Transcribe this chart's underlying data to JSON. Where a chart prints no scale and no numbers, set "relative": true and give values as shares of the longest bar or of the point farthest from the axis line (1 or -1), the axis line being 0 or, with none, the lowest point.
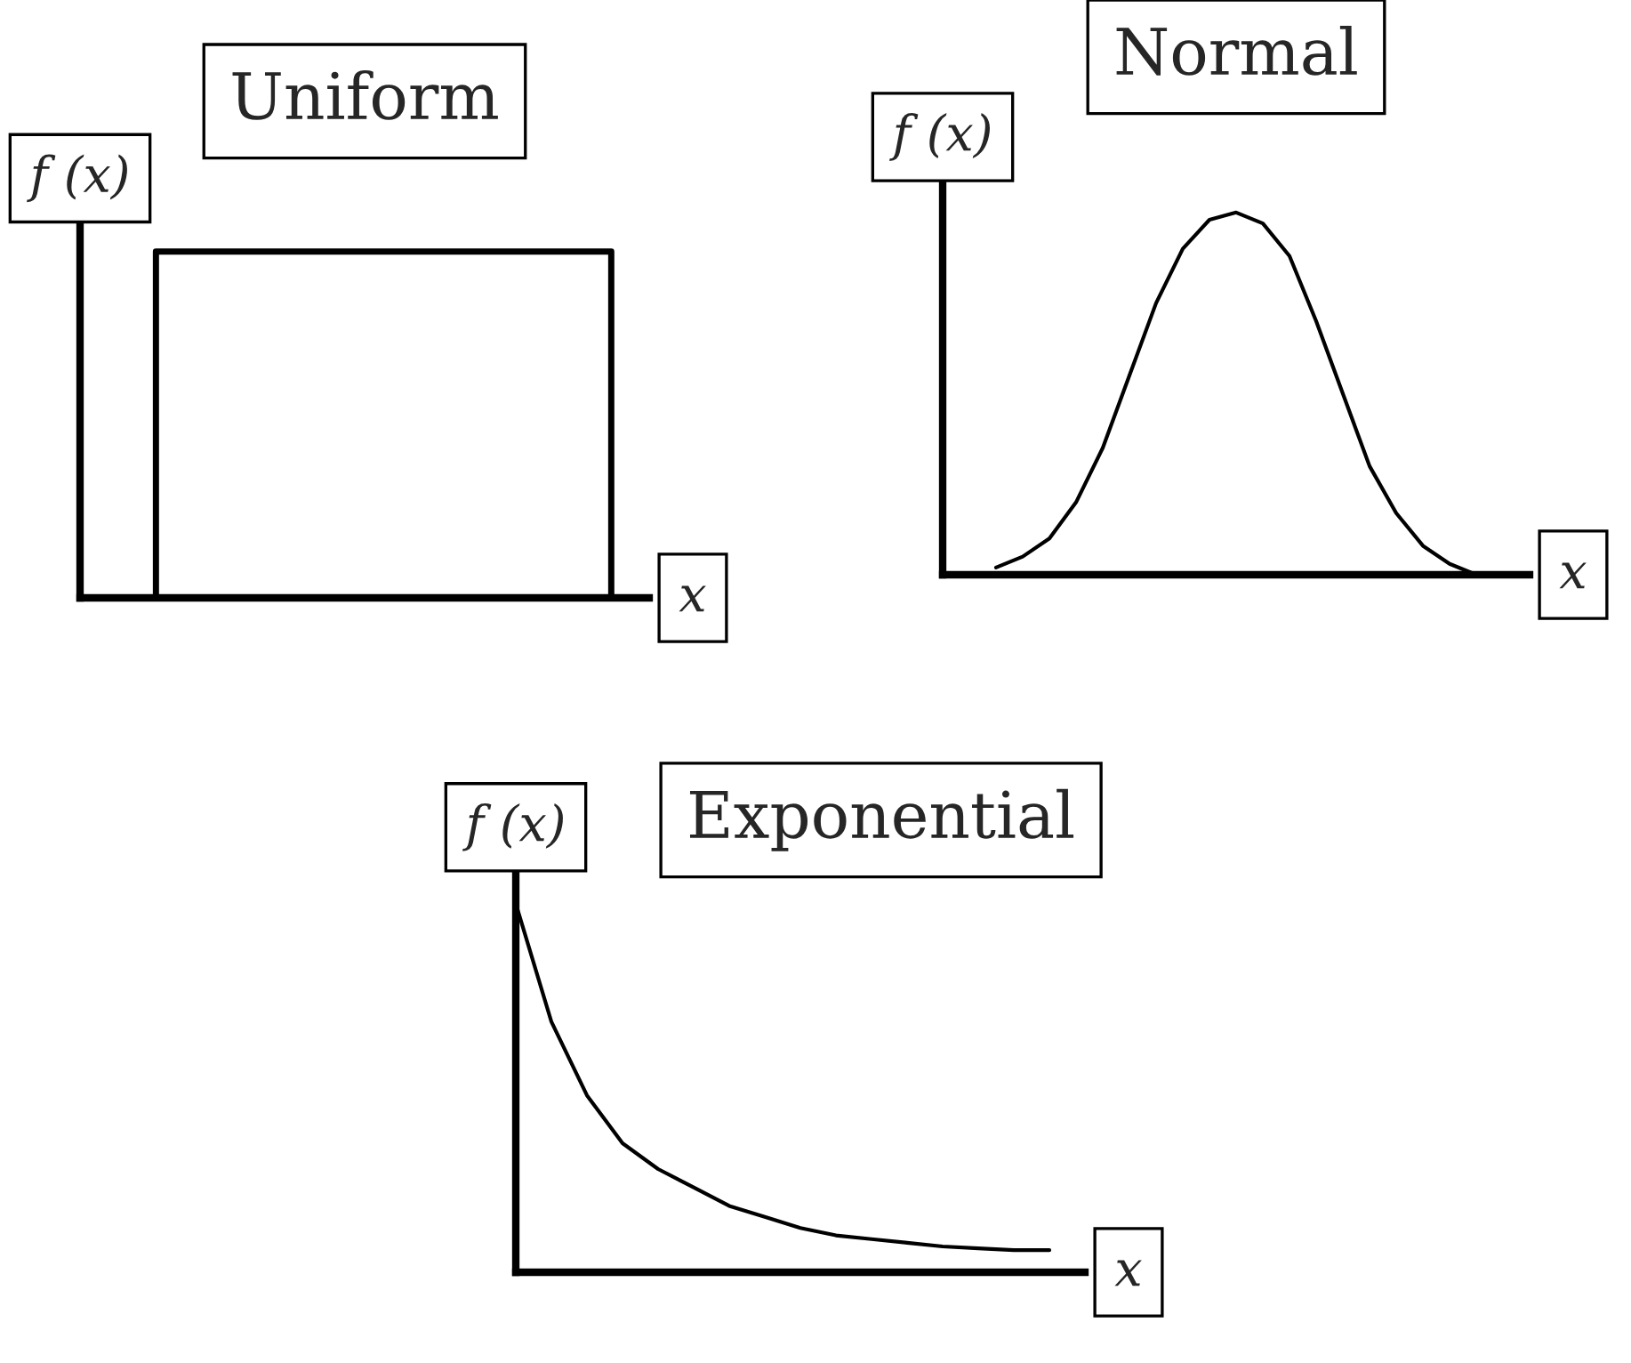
{
  "chart_data": [
    {
      "type": "step",
      "title": "Uniform",
      "xlabel": "x",
      "ylabel": "f (x)",
      "relative": true,
      "categories": [
        null,
        null,
        null,
        null,
        null,
        null,
        null,
        null,
        null,
        null,
        null,
        null,
        null,
        null,
        null,
        null
      ],
      "series": [
        {
          "color": "#000000",
          "values": [
            0,
            0,
            1,
            1,
            1,
            1,
            1,
            1,
            1,
            1,
            1,
            1,
            1,
            1,
            0,
            0
          ]
        }
      ]
    },
    {
      "type": "line",
      "title": "Normal",
      "xlabel": "x",
      "ylabel": "f (x)",
      "relative": true,
      "categories": [
        null,
        null,
        null,
        null,
        null,
        null,
        null,
        null,
        null,
        null,
        null,
        null,
        null,
        null,
        null,
        null,
        null,
        null,
        null,
        null,
        null,
        null,
        null
      ],
      "series": [
        {
          "color": "#000000",
          "values": [
            null,
            null,
            0.02,
            0.05,
            0.1,
            0.2,
            0.35,
            0.55,
            0.75,
            0.9,
            0.98,
            1,
            0.97,
            0.88,
            0.7,
            0.5,
            0.3,
            0.17,
            0.08,
            0.03,
            0,
            null,
            null
          ]
        }
      ]
    },
    {
      "type": "line",
      "title": "Exponential",
      "xlabel": "x",
      "ylabel": "f (x)",
      "relative": true,
      "categories": [
        null,
        null,
        null,
        null,
        null,
        null,
        null,
        null,
        null,
        null,
        null,
        null,
        null,
        null,
        null,
        null,
        null
      ],
      "series": [
        {
          "color": "#000000",
          "values": [
            1,
            0.68,
            0.48,
            0.35,
            0.28,
            0.23,
            0.18,
            0.15,
            0.12,
            0.1,
            0.09,
            0.08,
            0.07,
            0.065,
            0.06,
            0.06,
            null
          ]
        }
      ]
    }
  ]
}
